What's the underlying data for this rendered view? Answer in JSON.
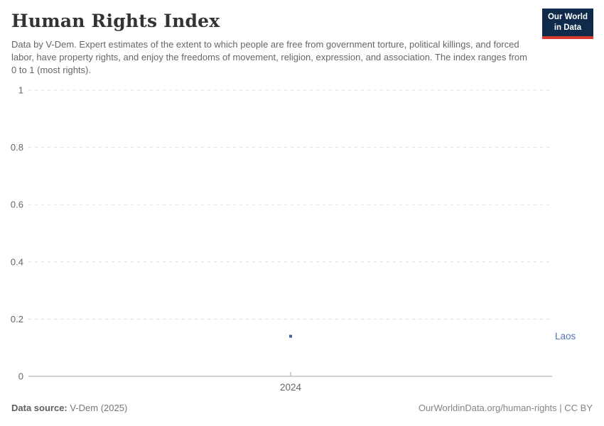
{
  "header": {
    "title": "Human Rights Index",
    "subtitle": "Data by V-Dem. Expert estimates of the extent to which people are free from government torture, political killings, and forced labor, have property rights, and enjoy the freedoms of movement, religion, expression, and association. The index ranges from 0 to 1 (most rights).",
    "logo": {
      "line1": "Our World",
      "line2": "in Data",
      "bg_color": "#102a4c",
      "stripe_color": "#d93a2b"
    }
  },
  "chart_data": {
    "type": "scatter",
    "title": "Human Rights Index",
    "xlabel": "",
    "ylabel": "",
    "ylim": [
      0,
      1
    ],
    "yticks": [
      0,
      0.2,
      0.4,
      0.6,
      0.8,
      1
    ],
    "xticks": [
      "2024"
    ],
    "grid": "horizontal-dashed",
    "legend_position": "right-of-point",
    "series": [
      {
        "name": "Laos",
        "color": "#3d62a5",
        "label_color": "#5676ad",
        "x": [
          2024
        ],
        "values": [
          0.14
        ]
      }
    ],
    "colors": {
      "gridline": "#dcdcdc",
      "axis_line": "#a5a5a5",
      "tick_label": "#666666"
    }
  },
  "footer": {
    "source_label": "Data source:",
    "source_value": "V-Dem (2025)",
    "credit": "OurWorldinData.org/human-rights | CC BY"
  }
}
